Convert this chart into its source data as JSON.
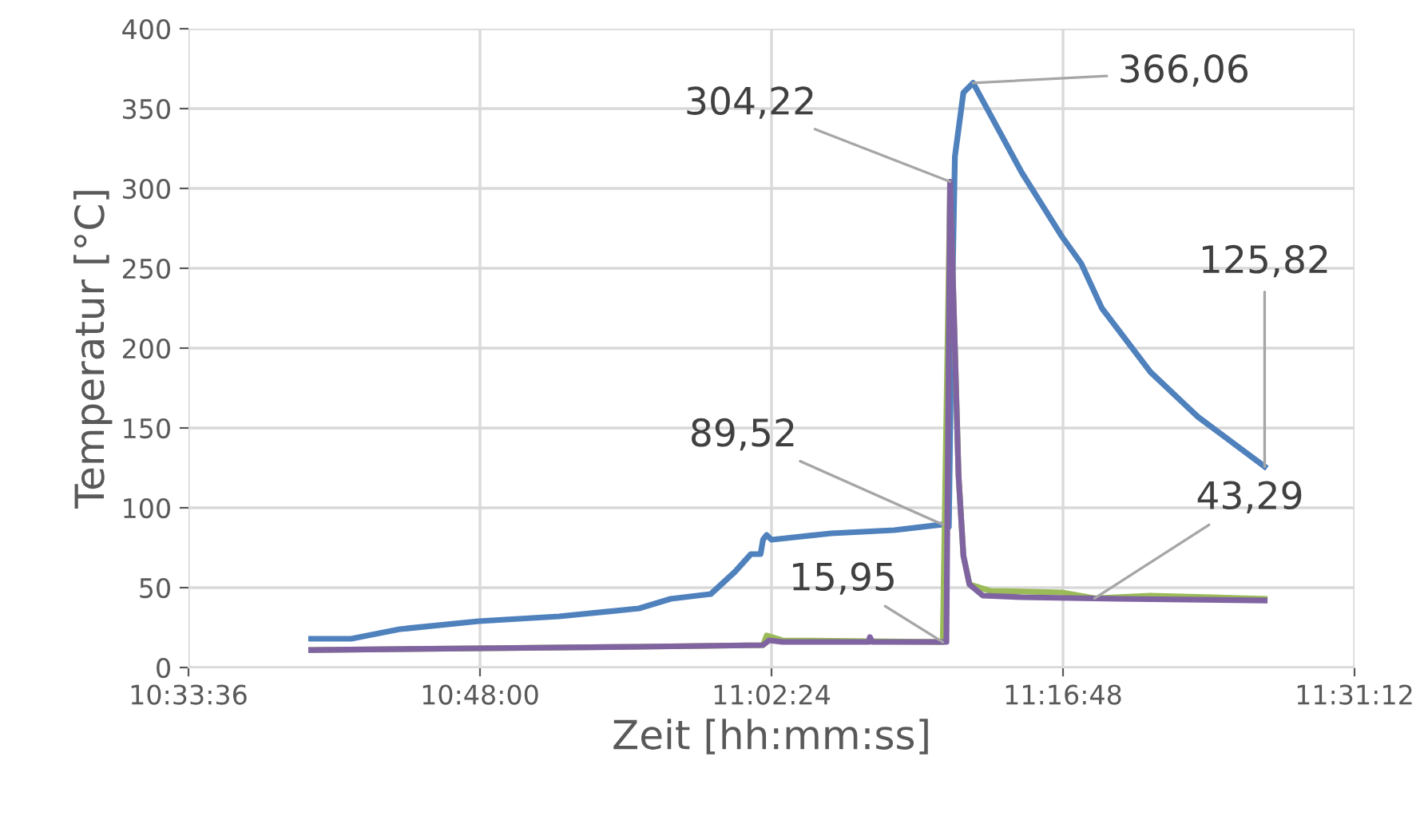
{
  "chart_data": {
    "type": "line",
    "xlabel": "Zeit [hh:mm:ss]",
    "ylabel": "Temperatur [°C]",
    "xlim": [
      10.56,
      11.52
    ],
    "xticks": [
      {
        "value": 10.56,
        "label": "10:33:36"
      },
      {
        "value": 10.8,
        "label": "10:48:00"
      },
      {
        "value": 11.04,
        "label": "11:02:24"
      },
      {
        "value": 11.28,
        "label": "11:16:48"
      },
      {
        "value": 11.52,
        "label": "11:31:12"
      }
    ],
    "ylim": [
      0,
      400
    ],
    "yticks": [
      0,
      50,
      100,
      150,
      200,
      250,
      300,
      350,
      400
    ],
    "grid": true,
    "legend": false,
    "marker": "none",
    "line_style": "solid",
    "series": [
      {
        "color": "#4f81bd",
        "x": [
          10.661,
          10.694,
          10.734,
          10.799,
          10.865,
          10.931,
          10.957,
          10.99,
          11.01,
          11.023,
          11.031,
          11.033,
          11.036,
          11.04,
          11.089,
          11.141,
          11.181,
          11.186,
          11.188,
          11.191,
          11.198,
          11.206,
          11.246,
          11.279,
          11.295,
          11.312,
          11.352,
          11.391,
          11.446
        ],
        "values": [
          18,
          18,
          24,
          29,
          32,
          37,
          43,
          46,
          60,
          71,
          71,
          80,
          83,
          80,
          84,
          86,
          89.52,
          88,
          200,
          320,
          360,
          366.06,
          310,
          270,
          253,
          225,
          185,
          157,
          125.82
        ]
      },
      {
        "color": "#9bbb59",
        "x": [
          10.661,
          10.931,
          11.033,
          11.036,
          11.049,
          11.181,
          11.187,
          11.191,
          11.194,
          11.198,
          11.203,
          11.22,
          11.279,
          11.306,
          11.352,
          11.446
        ],
        "values": [
          11,
          13,
          14,
          20,
          17,
          15.95,
          300,
          200,
          120,
          70,
          52,
          48,
          47,
          43.29,
          45,
          43
        ]
      },
      {
        "color": "#8064a2",
        "x": [
          10.661,
          10.799,
          10.931,
          11.033,
          11.038,
          11.049,
          11.12,
          11.121,
          11.123,
          11.184,
          11.187,
          11.191,
          11.194,
          11.198,
          11.203,
          11.214,
          11.246,
          11.325,
          11.446
        ],
        "values": [
          11,
          12,
          13,
          14,
          17,
          16,
          16,
          19,
          16,
          16,
          304.22,
          200,
          120,
          70,
          52,
          45,
          44,
          43,
          42
        ]
      }
    ],
    "annotations": [
      {
        "text": "366,06",
        "x": 11.206,
        "y": 366.06
      },
      {
        "text": "304,22",
        "x": 11.187,
        "y": 304.22
      },
      {
        "text": "125,82",
        "x": 11.446,
        "y": 125.82
      },
      {
        "text": "89,52",
        "x": 11.181,
        "y": 89.52
      },
      {
        "text": "15,95",
        "x": 11.181,
        "y": 15.95
      },
      {
        "text": "43,29",
        "x": 11.306,
        "y": 43.29
      }
    ]
  }
}
